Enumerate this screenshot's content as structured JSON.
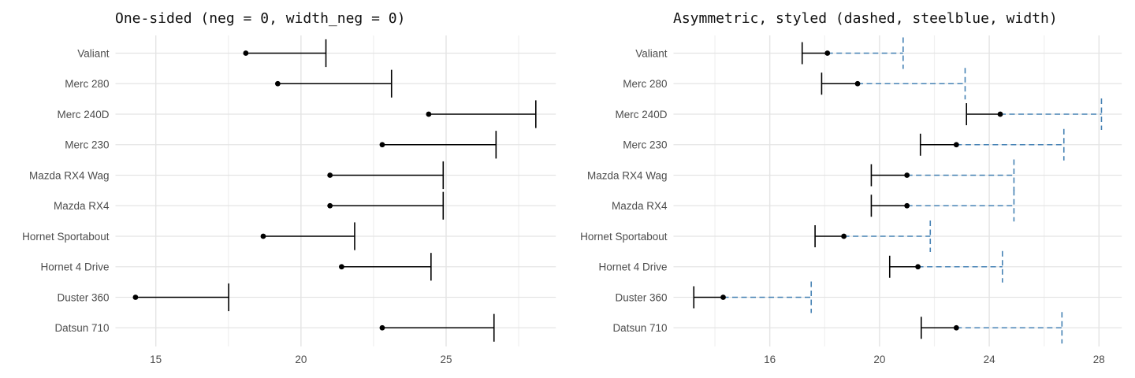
{
  "theme": {
    "background": "#ffffff",
    "grid_major_color": "#e4e4e4",
    "grid_minor_color": "#f0f0f0",
    "axis_text_color": "#4d4d4d",
    "title_color": "#111111",
    "point_color": "#000000",
    "black": "#000000",
    "steelblue": "#4682b4"
  },
  "chart_data": [
    {
      "type": "errorbar",
      "orientation": "horizontal",
      "title": "One-sided (neg = 0, width_neg = 0)",
      "categories": [
        "Valiant",
        "Merc 280",
        "Merc 240D",
        "Merc 230",
        "Mazda RX4 Wag",
        "Mazda RX4",
        "Hornet Sportabout",
        "Hornet 4 Drive",
        "Duster 360",
        "Datsun 710"
      ],
      "series": [
        {
          "name": "point",
          "values": [
            18.1,
            19.2,
            24.4,
            22.8,
            21.0,
            21.0,
            18.7,
            21.4,
            14.3,
            22.8
          ]
        },
        {
          "name": "xmin",
          "values": [
            18.1,
            19.2,
            24.4,
            22.8,
            21.0,
            21.0,
            18.7,
            21.4,
            14.3,
            22.8
          ]
        },
        {
          "name": "xmax",
          "values": [
            20.86,
            23.12,
            28.09,
            26.72,
            24.9,
            24.9,
            21.85,
            24.48,
            17.51,
            26.65
          ]
        }
      ],
      "xlim": [
        13.61,
        28.78
      ],
      "x_major_ticks": [
        15,
        20,
        25
      ],
      "x_tick_labels": [
        "15",
        "20",
        "25"
      ],
      "x_minor_ticks": [
        17.5,
        22.5,
        27.5
      ],
      "grid": true,
      "legend": "none",
      "style": {
        "neg_color": "#000000",
        "neg_linetype": "solid",
        "cap_neg": false,
        "pos_color": "#000000",
        "pos_linetype": "solid",
        "cap_pos": true,
        "point_color": "#000000"
      }
    },
    {
      "type": "errorbar",
      "orientation": "horizontal",
      "title": "Asymmetric, styled (dashed, steelblue, width)",
      "categories": [
        "Valiant",
        "Merc 280",
        "Merc 240D",
        "Merc 230",
        "Mazda RX4 Wag",
        "Mazda RX4",
        "Hornet Sportabout",
        "Hornet 4 Drive",
        "Duster 360",
        "Datsun 710"
      ],
      "series": [
        {
          "name": "point",
          "values": [
            18.1,
            19.2,
            24.4,
            22.8,
            21.0,
            21.0,
            18.7,
            21.4,
            14.3,
            22.8
          ]
        },
        {
          "name": "xmin",
          "values": [
            17.18,
            17.89,
            23.17,
            21.49,
            19.7,
            19.7,
            17.65,
            20.37,
            13.23,
            21.52
          ]
        },
        {
          "name": "xmax",
          "values": [
            20.86,
            23.12,
            28.09,
            26.72,
            24.9,
            24.9,
            21.85,
            24.48,
            17.51,
            26.65
          ]
        }
      ],
      "xlim": [
        12.49,
        28.83
      ],
      "x_major_ticks": [
        16,
        20,
        24,
        28
      ],
      "x_tick_labels": [
        "16",
        "20",
        "24",
        "28"
      ],
      "x_minor_ticks": [
        14,
        18,
        22,
        26
      ],
      "grid": true,
      "legend": "none",
      "style": {
        "neg_color": "#000000",
        "neg_linetype": "solid",
        "cap_neg": true,
        "pos_color": "#4682b4",
        "pos_linetype": "dashed",
        "cap_pos": true,
        "point_color": "#000000"
      }
    }
  ]
}
